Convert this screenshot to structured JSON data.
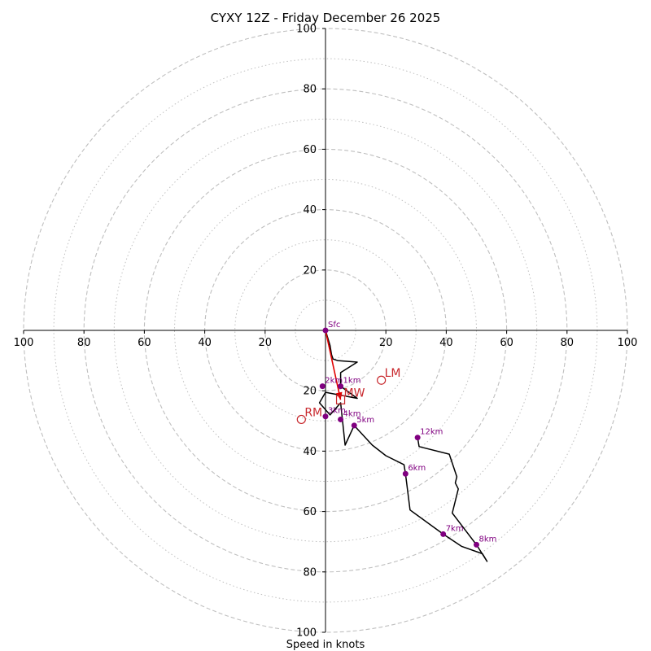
{
  "chart_data": {
    "type": "hodograph",
    "title": "CYXY 12Z - Friday December 26 2025",
    "xlabel": "Speed in knots",
    "range": [
      -100,
      100
    ],
    "ring_major": [
      20,
      40,
      60,
      80,
      100
    ],
    "ring_minor": [
      10,
      30,
      50,
      70,
      90
    ],
    "x_ticks": [
      {
        "v": -100,
        "label": "100"
      },
      {
        "v": -80,
        "label": "80"
      },
      {
        "v": -60,
        "label": "60"
      },
      {
        "v": -40,
        "label": "40"
      },
      {
        "v": -20,
        "label": "20"
      },
      {
        "v": 20,
        "label": "20"
      },
      {
        "v": 40,
        "label": "40"
      },
      {
        "v": 60,
        "label": "60"
      },
      {
        "v": 80,
        "label": "80"
      },
      {
        "v": 100,
        "label": "100"
      }
    ],
    "y_ticks": [
      {
        "v": 100,
        "label": "100"
      },
      {
        "v": 80,
        "label": "80"
      },
      {
        "v": 60,
        "label": "60"
      },
      {
        "v": 40,
        "label": "40"
      },
      {
        "v": 20,
        "label": "20"
      },
      {
        "v": -20,
        "label": "20"
      },
      {
        "v": -40,
        "label": "40"
      },
      {
        "v": -60,
        "label": "60"
      },
      {
        "v": -80,
        "label": "80"
      },
      {
        "v": -100,
        "label": "100"
      }
    ],
    "trace": [
      [
        0,
        0
      ],
      [
        1.5,
        -5
      ],
      [
        2,
        -8
      ],
      [
        2.5,
        -9.5
      ],
      [
        4,
        -10
      ],
      [
        10.5,
        -10.5
      ],
      [
        5,
        -14
      ],
      [
        5,
        -18.5
      ],
      [
        10.5,
        -22.5
      ],
      [
        0,
        -20.5
      ],
      [
        -2,
        -24
      ],
      [
        1.5,
        -28
      ],
      [
        5,
        -24
      ],
      [
        6.5,
        -38
      ],
      [
        9.5,
        -31.5
      ],
      [
        15.5,
        -38
      ],
      [
        20,
        -41.5
      ],
      [
        26,
        -44.5
      ],
      [
        26.5,
        -47.5
      ],
      [
        28,
        -59.5
      ],
      [
        39,
        -67.5
      ],
      [
        45,
        -71.5
      ],
      [
        52,
        -74
      ],
      [
        53.5,
        -76.5
      ],
      [
        50,
        -71
      ],
      [
        42,
        -60.5
      ],
      [
        44,
        -52.5
      ],
      [
        43,
        -50.5
      ],
      [
        43.5,
        -48.5
      ],
      [
        41,
        -41
      ],
      [
        31,
        -38.5
      ],
      [
        30.5,
        -35.5
      ]
    ],
    "height_markers": [
      {
        "label": "Sfc",
        "u": 0,
        "v": 0
      },
      {
        "label": "1km",
        "u": 5,
        "v": -18.5
      },
      {
        "label": "2km",
        "u": -1,
        "v": -18.5
      },
      {
        "label": "3km",
        "u": 0,
        "v": -28.5
      },
      {
        "label": "4km",
        "u": 5,
        "v": -29.5
      },
      {
        "label": "5km",
        "u": 9.5,
        "v": -31.5
      },
      {
        "label": "6km",
        "u": 26.5,
        "v": -47.5
      },
      {
        "label": "7km",
        "u": 39,
        "v": -67.5
      },
      {
        "label": "8km",
        "u": 50,
        "v": -71
      },
      {
        "label": "12km",
        "u": 30.5,
        "v": -35.5
      }
    ],
    "motions": [
      {
        "label": "LM",
        "u": 18.5,
        "v": -16.5,
        "marker": "circle"
      },
      {
        "label": "RM",
        "u": -8,
        "v": -29.5,
        "marker": "circle"
      },
      {
        "label": "MW",
        "u": 5,
        "v": -23,
        "marker": "square"
      }
    ],
    "shear_vector": {
      "from": [
        0,
        0
      ],
      "to": [
        5,
        -23
      ]
    },
    "colors": {
      "ring": "#bfbfbf",
      "trace": "#000000",
      "marker": "#800080",
      "motion": "#c8282d",
      "shear": "#e00000"
    }
  }
}
